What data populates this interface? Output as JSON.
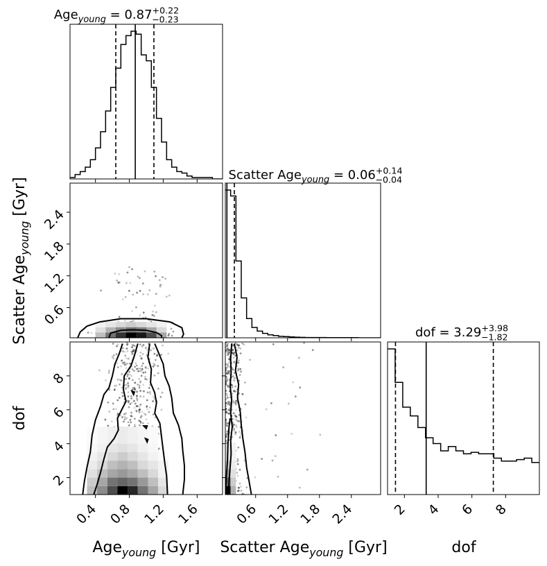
{
  "chart_data": {
    "type": "corner",
    "parameters": [
      "Age_young",
      "Scatter Age_young",
      "dof"
    ],
    "axis_labels": {
      "age": {
        "main": "Age",
        "sub": "young",
        "tail": " [Gyr]"
      },
      "scatter": {
        "main": "Scatter Age",
        "sub": "young",
        "tail": " [Gyr]"
      },
      "dof": {
        "main": "dof",
        "sub": "",
        "tail": ""
      }
    },
    "titles": {
      "age": {
        "main": "Age",
        "sub": "young",
        "eq": " = 0.87",
        "sup": "+0.22",
        "low": "−0.23"
      },
      "scatter": {
        "main": "Scatter Age",
        "sub": "young",
        "eq": " = 0.06",
        "sup": "+0.14",
        "low": "−0.04"
      },
      "dof": {
        "main": "dof",
        "sub": "",
        "eq": " = 3.29",
        "sup": "+3.98",
        "low": "−1.82"
      }
    },
    "ranges": {
      "age": [
        0.1,
        1.9
      ],
      "scatter": [
        0.03,
        2.95
      ],
      "dof": [
        1.0,
        10.0
      ]
    },
    "ticks": {
      "age": {
        "values": [
          0.4,
          0.8,
          1.2,
          1.6
        ],
        "labels": [
          "0.4",
          "0.8",
          "1.2",
          "1.6"
        ]
      },
      "scatter": {
        "values": [
          0.6,
          1.2,
          1.8,
          2.4
        ],
        "labels": [
          "0.6",
          "1.2",
          "1.8",
          "2.4"
        ]
      },
      "dof": {
        "values": [
          2,
          4,
          6,
          8
        ],
        "labels": [
          "2",
          "4",
          "6",
          "8"
        ]
      }
    },
    "quantiles": {
      "age": [
        0.64,
        0.87,
        1.09
      ],
      "scatter": [
        0.02,
        0.06,
        0.2
      ],
      "dof": [
        1.47,
        3.29,
        7.27
      ]
    },
    "hist_age": {
      "edges": [
        0.1,
        0.16,
        0.22,
        0.28,
        0.34,
        0.4,
        0.46,
        0.52,
        0.58,
        0.64,
        0.7,
        0.76,
        0.82,
        0.88,
        0.94,
        1.0,
        1.06,
        1.12,
        1.18,
        1.24,
        1.3,
        1.36,
        1.42,
        1.48,
        1.54,
        1.6,
        1.66,
        1.72,
        1.78,
        1.84,
        1.9
      ],
      "counts": [
        0.01,
        0.03,
        0.05,
        0.08,
        0.13,
        0.21,
        0.32,
        0.46,
        0.62,
        0.75,
        0.91,
        0.97,
        1.0,
        0.98,
        0.84,
        0.8,
        0.62,
        0.41,
        0.25,
        0.13,
        0.08,
        0.05,
        0.04,
        0.02,
        0.01,
        0.01,
        0.01,
        0.01,
        0.0,
        0.0
      ]
    },
    "hist_scatter": {
      "edges": [
        0.03,
        0.13,
        0.23,
        0.33,
        0.43,
        0.53,
        0.63,
        0.73,
        0.83,
        0.93,
        1.03,
        1.13,
        1.23,
        1.33,
        1.43,
        1.53,
        1.73,
        1.93,
        2.13,
        2.33,
        2.53,
        2.73,
        2.95
      ],
      "counts": [
        1.0,
        0.96,
        0.52,
        0.27,
        0.13,
        0.07,
        0.045,
        0.03,
        0.02,
        0.015,
        0.01,
        0.008,
        0.006,
        0.004,
        0.003,
        0.002,
        0.002,
        0.001,
        0.001,
        0.001,
        0.0,
        0.0
      ]
    },
    "hist_dof": {
      "edges": [
        1.0,
        1.45,
        1.9,
        2.35,
        2.8,
        3.25,
        3.7,
        4.15,
        4.6,
        5.05,
        5.5,
        5.95,
        6.4,
        6.85,
        7.3,
        7.75,
        8.2,
        8.65,
        9.1,
        9.55,
        10.0
      ],
      "counts": [
        1.0,
        0.77,
        0.6,
        0.54,
        0.46,
        0.39,
        0.35,
        0.3,
        0.33,
        0.3,
        0.28,
        0.29,
        0.28,
        0.28,
        0.25,
        0.23,
        0.23,
        0.24,
        0.25,
        0.22
      ]
    },
    "density_age_scatter": {
      "x_edges": [
        0.4,
        0.52,
        0.64,
        0.76,
        0.88,
        1.0,
        1.12,
        1.24
      ],
      "y_edges": [
        0.03,
        0.13,
        0.23,
        0.33
      ],
      "values": [
        [
          0.25,
          0.55,
          0.8,
          1.0,
          0.9,
          0.7,
          0.35
        ],
        [
          0.12,
          0.3,
          0.45,
          0.55,
          0.5,
          0.35,
          0.15
        ],
        [
          0.05,
          0.1,
          0.15,
          0.2,
          0.15,
          0.1,
          0.05
        ]
      ]
    },
    "density_age_dof": {
      "x_edges": [
        0.3,
        0.42,
        0.54,
        0.66,
        0.78,
        0.9,
        1.02,
        1.14,
        1.26
      ],
      "y_edges": [
        1.0,
        1.5,
        2.0,
        2.5,
        3.0,
        3.5,
        4.0,
        5.0
      ],
      "values": [
        [
          0.25,
          0.45,
          0.7,
          1.0,
          0.85,
          0.55,
          0.35,
          0.15
        ],
        [
          0.2,
          0.35,
          0.55,
          0.6,
          0.55,
          0.4,
          0.25,
          0.1
        ],
        [
          0.12,
          0.25,
          0.35,
          0.4,
          0.35,
          0.25,
          0.15,
          0.05
        ],
        [
          0.08,
          0.15,
          0.25,
          0.3,
          0.25,
          0.15,
          0.1,
          0.05
        ],
        [
          0.05,
          0.1,
          0.15,
          0.2,
          0.15,
          0.1,
          0.05,
          0.02
        ],
        [
          0.03,
          0.06,
          0.1,
          0.12,
          0.1,
          0.06,
          0.03,
          0.0
        ],
        [
          0.02,
          0.04,
          0.06,
          0.08,
          0.06,
          0.04,
          0.02,
          0.0
        ]
      ]
    },
    "density_scatter_dof": {
      "x_edges": [
        0.03,
        0.13,
        0.23
      ],
      "y_edges": [
        1.0,
        1.5,
        2.0,
        2.5,
        3.0,
        4.0
      ],
      "values": [
        [
          1.0,
          0.3
        ],
        [
          0.6,
          0.2
        ],
        [
          0.35,
          0.12
        ],
        [
          0.2,
          0.08
        ],
        [
          0.1,
          0.05
        ]
      ]
    },
    "contours_age_scatter": [
      [
        [
          0.19,
          0.03
        ],
        [
          0.22,
          0.14
        ],
        [
          0.3,
          0.25
        ],
        [
          0.45,
          0.33
        ],
        [
          0.7,
          0.39
        ],
        [
          1.0,
          0.39
        ],
        [
          1.28,
          0.33
        ],
        [
          1.42,
          0.22
        ],
        [
          1.44,
          0.1
        ],
        [
          1.42,
          0.03
        ]
      ],
      [
        [
          0.56,
          0.03
        ],
        [
          0.58,
          0.12
        ],
        [
          0.7,
          0.17
        ],
        [
          0.85,
          0.18
        ],
        [
          1.0,
          0.17
        ],
        [
          1.12,
          0.13
        ],
        [
          1.18,
          0.07
        ],
        [
          1.18,
          0.03
        ]
      ]
    ],
    "contours_age_dof": [
      [
        [
          0.25,
          1.0
        ],
        [
          0.27,
          1.8
        ],
        [
          0.3,
          2.6
        ],
        [
          0.34,
          3.5
        ],
        [
          0.36,
          4.5
        ],
        [
          0.4,
          5.4
        ],
        [
          0.46,
          6.2
        ],
        [
          0.5,
          6.9
        ],
        [
          0.56,
          7.3
        ],
        [
          0.6,
          8.0
        ],
        [
          0.63,
          8.7
        ],
        [
          0.68,
          9.3
        ],
        [
          0.72,
          9.9
        ]
      ],
      [
        [
          1.1,
          9.9
        ],
        [
          1.15,
          9.3
        ],
        [
          1.2,
          8.7
        ],
        [
          1.22,
          8.0
        ],
        [
          1.27,
          7.4
        ],
        [
          1.3,
          6.7
        ],
        [
          1.32,
          5.8
        ],
        [
          1.38,
          5.1
        ],
        [
          1.42,
          4.3
        ],
        [
          1.43,
          3.6
        ],
        [
          1.45,
          2.7
        ],
        [
          1.45,
          1.9
        ],
        [
          1.43,
          1.0
        ]
      ],
      [
        [
          0.38,
          1.0
        ],
        [
          0.42,
          1.6
        ],
        [
          0.46,
          2.3
        ],
        [
          0.5,
          3.1
        ],
        [
          0.54,
          3.8
        ],
        [
          0.62,
          4.3
        ],
        [
          0.67,
          4.8
        ],
        [
          0.66,
          5.5
        ],
        [
          0.72,
          6.1
        ],
        [
          0.76,
          6.5
        ],
        [
          0.73,
          7.2
        ],
        [
          0.74,
          8.0
        ],
        [
          0.82,
          8.6
        ],
        [
          0.86,
          9.2
        ],
        [
          0.9,
          9.9
        ]
      ],
      [
        [
          1.04,
          9.9
        ],
        [
          1.02,
          9.1
        ],
        [
          1.06,
          8.4
        ],
        [
          1.05,
          7.6
        ],
        [
          1.1,
          7.0
        ],
        [
          1.12,
          6.4
        ],
        [
          1.1,
          5.8
        ],
        [
          1.16,
          5.2
        ],
        [
          1.18,
          4.4
        ],
        [
          1.2,
          3.6
        ],
        [
          1.22,
          2.8
        ],
        [
          1.24,
          2.1
        ],
        [
          1.25,
          1.0
        ]
      ]
    ],
    "contours_age_scatter_label": "",
    "contours_scatter_dof": [
      [
        [
          0.09,
          1.0
        ],
        [
          0.1,
          1.8
        ],
        [
          0.12,
          2.6
        ],
        [
          0.14,
          3.4
        ],
        [
          0.13,
          4.2
        ],
        [
          0.16,
          5.0
        ],
        [
          0.13,
          5.8
        ],
        [
          0.15,
          6.6
        ],
        [
          0.12,
          7.4
        ],
        [
          0.14,
          8.2
        ],
        [
          0.13,
          9.0
        ],
        [
          0.15,
          9.9
        ]
      ],
      [
        [
          0.2,
          9.9
        ],
        [
          0.25,
          9.1
        ],
        [
          0.22,
          8.3
        ],
        [
          0.28,
          7.5
        ],
        [
          0.26,
          6.7
        ],
        [
          0.31,
          5.9
        ],
        [
          0.33,
          5.1
        ],
        [
          0.36,
          4.3
        ],
        [
          0.4,
          3.5
        ],
        [
          0.43,
          2.6
        ],
        [
          0.47,
          1.9
        ],
        [
          0.52,
          1.0
        ]
      ],
      [
        [
          0.03,
          1.0
        ],
        [
          0.05,
          2.0
        ],
        [
          0.07,
          3.0
        ],
        [
          0.08,
          4.0
        ],
        [
          0.1,
          5.0
        ],
        [
          0.12,
          5.5
        ]
      ]
    ],
    "contours_small_age_dof": [
      [
        [
          0.83,
          7.1
        ],
        [
          0.85,
          6.9
        ],
        [
          0.86,
          7.05
        ]
      ],
      [
        [
          0.99,
          4.3
        ],
        [
          1.01,
          4.1
        ],
        [
          1.02,
          4.25
        ]
      ],
      [
        [
          0.97,
          5.05
        ],
        [
          1.0,
          4.9
        ],
        [
          1.01,
          5.05
        ]
      ]
    ]
  }
}
